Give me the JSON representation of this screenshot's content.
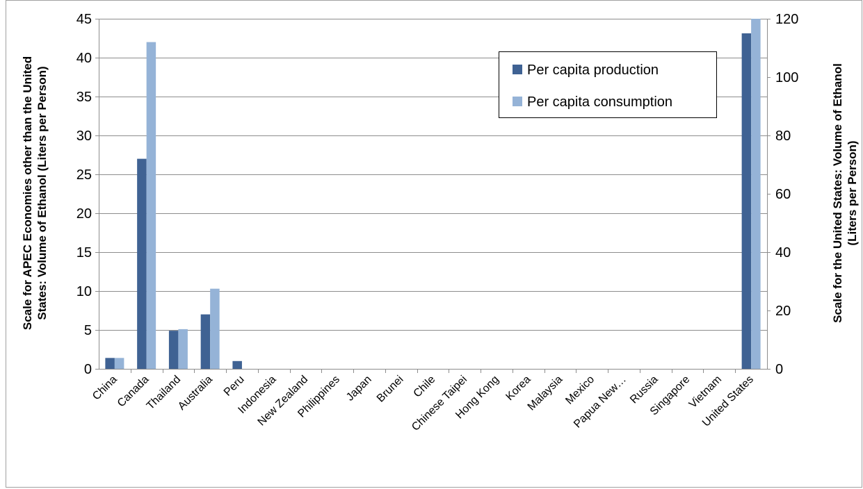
{
  "chart_data": {
    "type": "bar",
    "title": "",
    "categories": [
      "China",
      "Canada",
      "Thailand",
      "Australia",
      "Peru",
      "Indonesia",
      "New Zealand",
      "Philippines",
      "Japan",
      "Brunei",
      "Chile",
      "Chinese Taipei",
      "Hong Kong",
      "Korea",
      "Malaysia",
      "Mexico",
      "Papua New…",
      "Russia",
      "Singapore",
      "Vietnam",
      "United States"
    ],
    "series": [
      {
        "name": "Per capita production",
        "color": "#3F6293",
        "values": [
          1.4,
          27,
          4.9,
          7,
          1,
          0,
          0,
          0,
          0,
          0,
          0,
          0,
          0,
          0,
          0,
          0,
          0,
          0,
          0,
          0,
          115
        ]
      },
      {
        "name": "Per capita consumption",
        "color": "#95B3D7",
        "values": [
          1.4,
          42,
          5.1,
          10.3,
          0,
          0,
          0,
          0,
          0,
          0,
          0,
          0,
          0,
          0,
          0,
          0,
          0,
          0,
          0,
          0,
          120
        ]
      }
    ],
    "axis_note": "United States values are read on the right (secondary) axis; all other economies on the left axis.",
    "secondary_axis_categories": [
      "United States"
    ],
    "ylabel_left": [
      "Scale for APEC Economies other than the United",
      "States: Volume of Ethanol (Liters per Person)"
    ],
    "ylabel_right": [
      "Scale for the United States: Volume of Ethanol",
      "(Liters per Person)"
    ],
    "ylim_left": [
      0,
      45
    ],
    "yticks_left": [
      "0",
      "5",
      "10",
      "15",
      "20",
      "25",
      "30",
      "35",
      "40",
      "45"
    ],
    "ylim_right": [
      0,
      120
    ],
    "yticks_right": [
      "0",
      "20",
      "40",
      "60",
      "80",
      "100",
      "120"
    ],
    "grid": true,
    "legend_position": "top-right"
  }
}
